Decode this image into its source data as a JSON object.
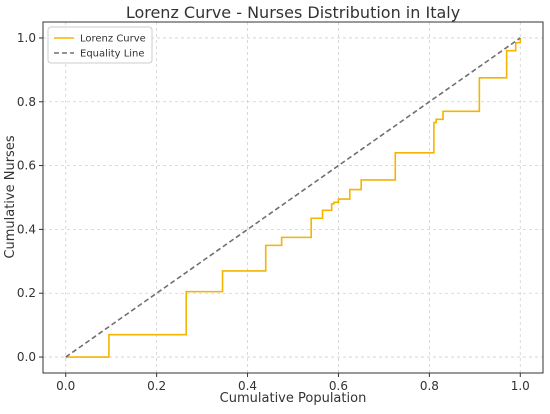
{
  "chart_data": {
    "type": "line",
    "title": "Lorenz Curve - Nurses Distribution in Italy",
    "xlabel": "Cumulative Population",
    "ylabel": "Cumulative Nurses",
    "xlim": [
      -0.05,
      1.05
    ],
    "ylim": [
      -0.05,
      1.05
    ],
    "xticks": [
      0.0,
      0.2,
      0.4,
      0.6,
      0.8,
      1.0
    ],
    "xtick_labels": [
      "0.0",
      "0.2",
      "0.4",
      "0.6",
      "0.8",
      "1.0"
    ],
    "yticks": [
      0.0,
      0.2,
      0.4,
      0.6,
      0.8,
      1.0
    ],
    "ytick_labels": [
      "0.0",
      "0.2",
      "0.4",
      "0.6",
      "0.8",
      "1.0"
    ],
    "grid": true,
    "legend_position": "top-left",
    "series": [
      {
        "name": "Lorenz Curve",
        "style": "steps-post",
        "color": "#f5b400",
        "x": [
          0.0,
          0.095,
          0.265,
          0.345,
          0.44,
          0.475,
          0.54,
          0.565,
          0.585,
          0.59,
          0.6,
          0.625,
          0.65,
          0.725,
          0.81,
          0.815,
          0.83,
          0.91,
          0.97,
          0.99,
          1.0
        ],
        "y": [
          0.0,
          0.07,
          0.205,
          0.27,
          0.35,
          0.375,
          0.435,
          0.46,
          0.48,
          0.485,
          0.495,
          0.525,
          0.555,
          0.64,
          0.735,
          0.745,
          0.77,
          0.875,
          0.96,
          0.985,
          1.0
        ]
      },
      {
        "name": "Equality Line",
        "style": "dashed",
        "color": "#707070",
        "x": [
          0.0,
          1.0
        ],
        "y": [
          0.0,
          1.0
        ]
      }
    ]
  }
}
